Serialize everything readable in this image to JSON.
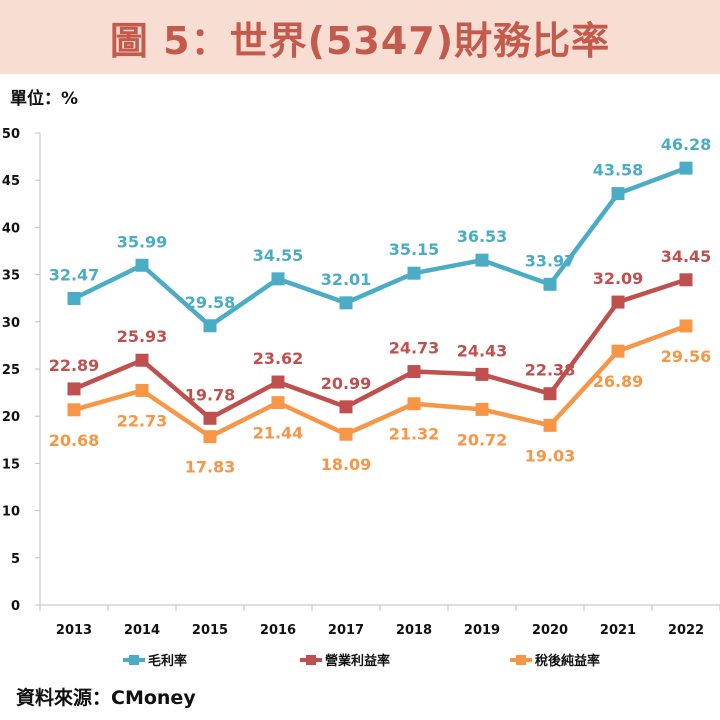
{
  "title": "圖 5：世界(5347)財務比率",
  "unit": "單位：%",
  "source": "資料來源：CMoney",
  "chart_data": {
    "type": "line",
    "title": "圖 5：世界(5347)財務比率",
    "ylabel": "單位：%",
    "xlabel": "",
    "ylim": [
      0,
      50
    ],
    "yticks": [
      0,
      5,
      10,
      15,
      20,
      25,
      30,
      35,
      40,
      45,
      50
    ],
    "categories": [
      "2013",
      "2014",
      "2015",
      "2016",
      "2017",
      "2018",
      "2019",
      "2020",
      "2021",
      "2022"
    ],
    "grid": false,
    "legend": "bottom",
    "series": [
      {
        "name": "毛利率",
        "color": "#4bacc6",
        "label_color": "#4bacc6",
        "label_pos": "above",
        "values": [
          32.47,
          35.99,
          29.58,
          34.55,
          32.01,
          35.15,
          36.53,
          33.97,
          43.58,
          46.28
        ]
      },
      {
        "name": "營業利益率",
        "color": "#c0504d",
        "label_color": "#c0504d",
        "label_pos": "above",
        "values": [
          22.89,
          25.93,
          19.78,
          23.62,
          20.99,
          24.73,
          24.43,
          22.38,
          32.09,
          34.45
        ]
      },
      {
        "name": "稅後純益率",
        "color": "#f79646",
        "label_color": "#f79646",
        "label_pos": "below",
        "values": [
          20.68,
          22.73,
          17.83,
          21.44,
          18.09,
          21.32,
          20.72,
          19.03,
          26.89,
          29.56
        ]
      }
    ]
  }
}
